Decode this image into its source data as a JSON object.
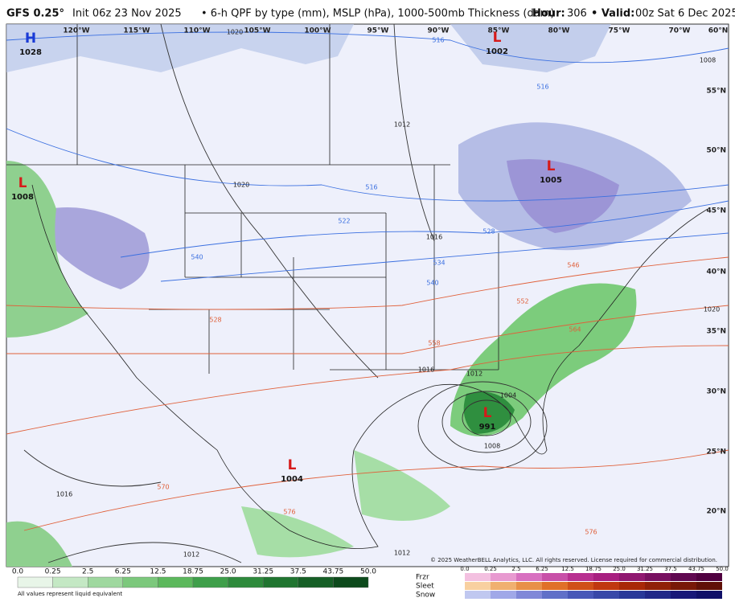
{
  "header": {
    "model": "GFS 0.25°",
    "init": "Init 06z 23 Nov 2025",
    "description": "• 6-h QPF by type (mm), MSLP (hPa), 1000-500mb Thickness (dam)",
    "hour_label": "Hour:",
    "hour": "306",
    "valid_label": "• Valid:",
    "valid": "00z Sat 6 Dec 2025"
  },
  "map": {
    "longitudes": [
      "120°W",
      "115°W",
      "110°W",
      "105°W",
      "100°W",
      "95°W",
      "90°W",
      "85°W",
      "80°W",
      "75°W",
      "70°W",
      "60°N"
    ],
    "latitudes": [
      "55°N",
      "50°N",
      "45°N",
      "40°N",
      "35°N",
      "30°N",
      "25°N",
      "20°N"
    ],
    "pressure_centers": [
      {
        "symbol": "H",
        "value": "1028"
      },
      {
        "symbol": "L",
        "value": "1002"
      },
      {
        "symbol": "L",
        "value": "1005"
      },
      {
        "symbol": "L",
        "value": "1008"
      },
      {
        "symbol": "L",
        "value": "991"
      },
      {
        "symbol": "L",
        "value": "1004"
      }
    ],
    "isobar_labels": [
      "1020",
      "1012",
      "1020",
      "1016",
      "1016",
      "1012",
      "1008",
      "1016",
      "1012",
      "1012",
      "1020",
      "1008",
      "1004"
    ],
    "thickness_labels": [
      "516",
      "516",
      "516",
      "522",
      "528",
      "534",
      "540",
      "546",
      "552",
      "558",
      "564",
      "570",
      "576",
      "576",
      "540",
      "528"
    ],
    "copyright": "© 2025 WeatherBELL Analytics, LLC. All rights reserved. License required for commercial distribution."
  },
  "legend": {
    "rain_ticks": [
      "0.0",
      "0.25",
      "2.5",
      "6.25",
      "12.5",
      "18.75",
      "25.0",
      "31.25",
      "37.5",
      "43.75",
      "50.0"
    ],
    "note": "All values represent liquid equivalent",
    "types": [
      "Frzr",
      "Sleet",
      "Snow"
    ],
    "mixed_ticks": [
      "0.0",
      "0.25",
      "2.5",
      "6.25",
      "12.5",
      "18.75",
      "25.0",
      "31.25",
      "37.5",
      "43.75",
      "50.0"
    ]
  }
}
